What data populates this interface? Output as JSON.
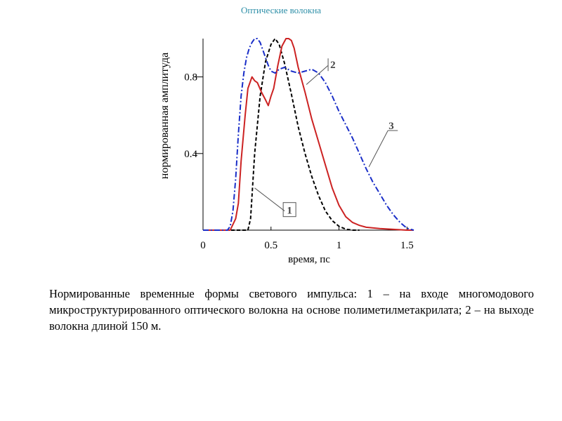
{
  "slide": {
    "title": "Оптические волокна",
    "caption": "Нормированные временные формы светового импульса: 1 – на входе многомодового микроструктурированного оптического волокна на основе полиметилметакрилата; 2 – на выходе волокна длиной 150 м."
  },
  "chart_data": {
    "type": "line",
    "title": "",
    "xlabel": "время, пс",
    "ylabel": "нормированная амплитуда",
    "xlim": [
      0,
      1.55
    ],
    "ylim": [
      0,
      1.0
    ],
    "xticks": [
      0,
      0.5,
      1,
      1.5
    ],
    "xtick_labels": [
      "0",
      "0.5",
      "1",
      "1.5"
    ],
    "yticks": [
      0.4,
      0.8
    ],
    "ytick_labels": [
      "0.4",
      "0.8"
    ],
    "grid": false,
    "series": [
      {
        "name": "1",
        "color": "#000000",
        "style": "dashed",
        "x": [
          0.0,
          0.33,
          0.35,
          0.38,
          0.42,
          0.46,
          0.5,
          0.53,
          0.56,
          0.6,
          0.65,
          0.7,
          0.75,
          0.8,
          0.85,
          0.9,
          0.95,
          1.0,
          1.05,
          1.1,
          1.15
        ],
        "y": [
          0.0,
          0.0,
          0.06,
          0.4,
          0.7,
          0.88,
          0.97,
          1.0,
          0.97,
          0.87,
          0.71,
          0.54,
          0.4,
          0.28,
          0.18,
          0.1,
          0.05,
          0.02,
          0.005,
          0.0,
          0.0
        ]
      },
      {
        "name": "2",
        "color": "#cc2222",
        "style": "solid",
        "x": [
          0.0,
          0.18,
          0.2,
          0.24,
          0.26,
          0.28,
          0.31,
          0.33,
          0.36,
          0.38,
          0.4,
          0.43,
          0.46,
          0.48,
          0.5,
          0.52,
          0.55,
          0.58,
          0.61,
          0.63,
          0.65,
          0.67,
          0.7,
          0.75,
          0.8,
          0.85,
          0.9,
          0.95,
          1.0,
          1.05,
          1.1,
          1.15,
          1.2,
          1.3,
          1.4,
          1.5,
          1.55
        ],
        "y": [
          0.0,
          0.0,
          0.0,
          0.06,
          0.14,
          0.36,
          0.6,
          0.74,
          0.8,
          0.78,
          0.77,
          0.72,
          0.68,
          0.65,
          0.7,
          0.74,
          0.86,
          0.96,
          1.0,
          1.0,
          0.99,
          0.95,
          0.85,
          0.72,
          0.58,
          0.46,
          0.34,
          0.22,
          0.13,
          0.07,
          0.04,
          0.025,
          0.015,
          0.008,
          0.004,
          0.0,
          0.0
        ]
      },
      {
        "name": "3",
        "color": "#1a2ec8",
        "style": "dash-dot",
        "x": [
          0.0,
          0.18,
          0.2,
          0.22,
          0.24,
          0.26,
          0.28,
          0.3,
          0.32,
          0.34,
          0.36,
          0.38,
          0.4,
          0.42,
          0.44,
          0.46,
          0.48,
          0.5,
          0.53,
          0.56,
          0.6,
          0.65,
          0.7,
          0.75,
          0.8,
          0.85,
          0.9,
          0.95,
          1.0,
          1.05,
          1.1,
          1.15,
          1.2,
          1.25,
          1.3,
          1.35,
          1.4,
          1.45,
          1.5,
          1.55
        ],
        "y": [
          0.0,
          0.0,
          0.02,
          0.1,
          0.27,
          0.5,
          0.7,
          0.82,
          0.9,
          0.95,
          0.98,
          1.0,
          1.0,
          0.98,
          0.94,
          0.9,
          0.86,
          0.83,
          0.82,
          0.84,
          0.85,
          0.83,
          0.82,
          0.83,
          0.84,
          0.82,
          0.77,
          0.7,
          0.62,
          0.55,
          0.48,
          0.4,
          0.32,
          0.25,
          0.19,
          0.13,
          0.08,
          0.04,
          0.01,
          0.0
        ]
      }
    ]
  }
}
